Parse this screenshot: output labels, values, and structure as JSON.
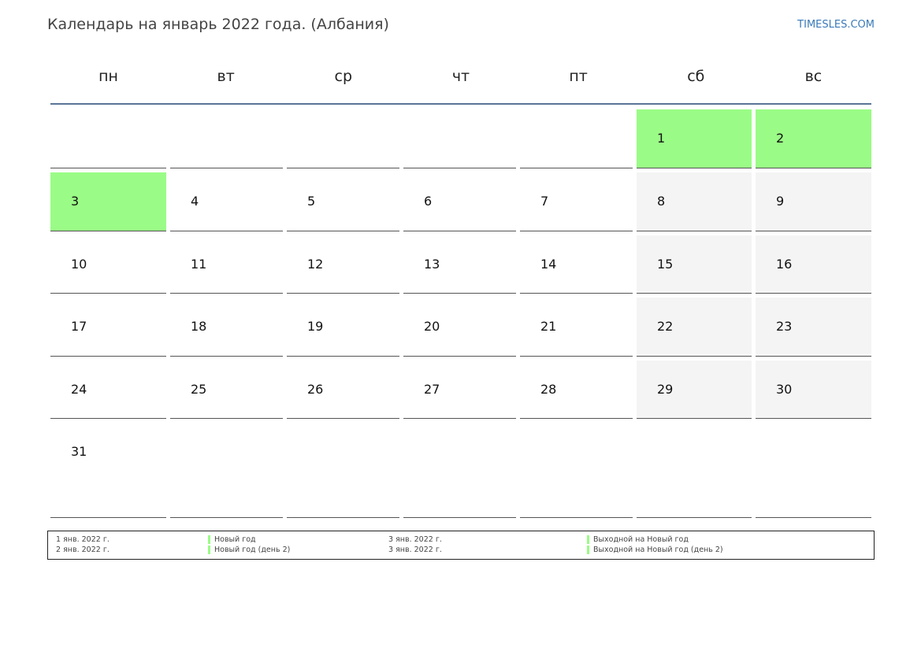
{
  "header": {
    "title": "Календарь на январь 2022 года. (Албания)",
    "site": "TIMESLES.COM"
  },
  "weekdays": [
    "пн",
    "вт",
    "ср",
    "чт",
    "пт",
    "сб",
    "вс"
  ],
  "calendar": {
    "weeks": [
      [
        "",
        "",
        "",
        "",
        "",
        "1",
        "2"
      ],
      [
        "3",
        "4",
        "5",
        "6",
        "7",
        "8",
        "9"
      ],
      [
        "10",
        "11",
        "12",
        "13",
        "14",
        "15",
        "16"
      ],
      [
        "17",
        "18",
        "19",
        "20",
        "21",
        "22",
        "23"
      ],
      [
        "24",
        "25",
        "26",
        "27",
        "28",
        "29",
        "30"
      ],
      [
        "31",
        "",
        "",
        "",
        "",
        "",
        ""
      ]
    ],
    "holidays": [
      "1",
      "2",
      "3"
    ]
  },
  "legend": [
    {
      "date": "1 янв. 2022 г.",
      "name": "Новый год",
      "date2": "3 янв. 2022 г.",
      "name2": "Выходной на Новый год"
    },
    {
      "date": "2 янв. 2022 г.",
      "name": "Новый год (день 2)",
      "date2": "3 янв. 2022 г.",
      "name2": "Выходной на Новый год (день 2)"
    }
  ],
  "colors": {
    "holiday": "#9afc86",
    "weekend": "#f4f4f4",
    "header_rule": "#5b7598",
    "link": "#3a7ab8"
  }
}
